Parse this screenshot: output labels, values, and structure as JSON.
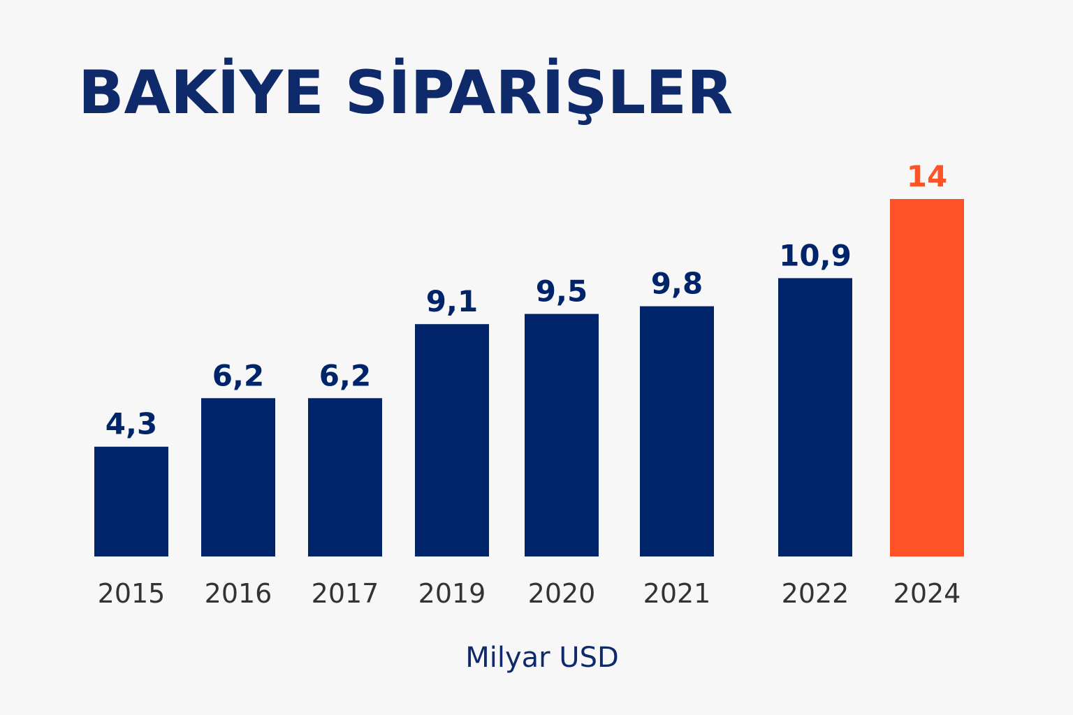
{
  "chart_data": {
    "type": "bar",
    "title": "BAKİYE SİPARİŞLER",
    "categories": [
      "2015",
      "2016",
      "2017",
      "2019",
      "2020",
      "2021",
      "2022",
      "2024"
    ],
    "values": [
      4.3,
      6.2,
      6.2,
      9.1,
      9.5,
      9.8,
      10.9,
      14
    ],
    "value_labels": [
      "4,3",
      "6,2",
      "6,2",
      "9,1",
      "9,5",
      "9,8",
      "10,9",
      "14"
    ],
    "colors": [
      "#002469",
      "#002469",
      "#002469",
      "#002469",
      "#002469",
      "#002469",
      "#002469",
      "#ff5227"
    ],
    "x_label": "Milyar USD"
  }
}
